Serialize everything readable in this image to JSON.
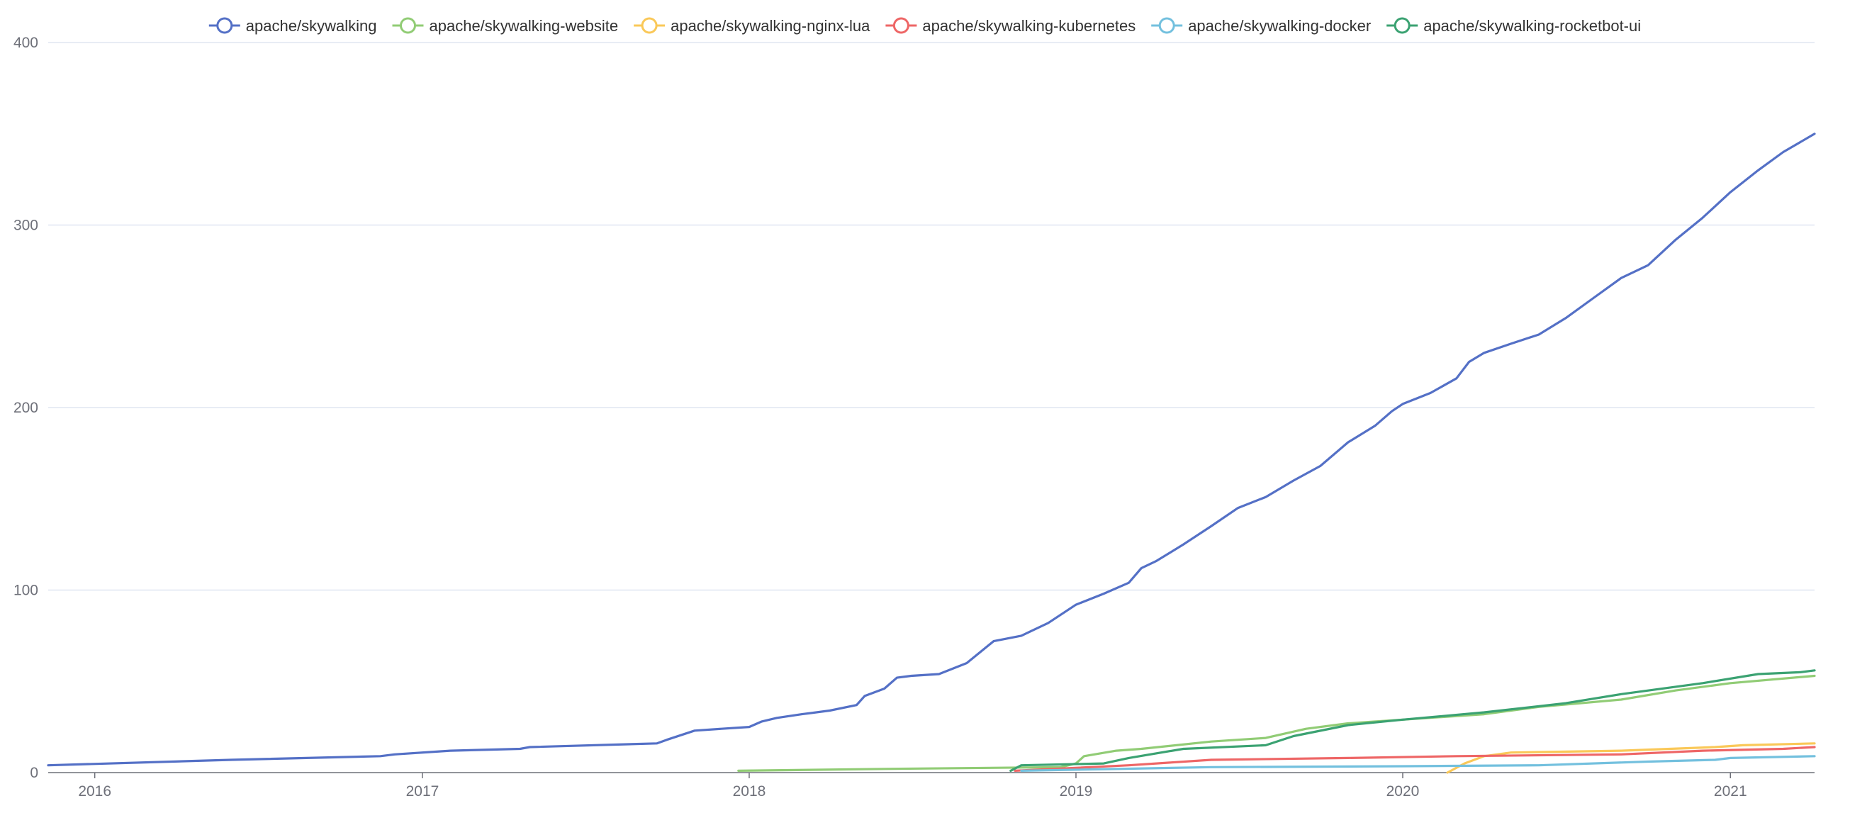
{
  "chart_data": {
    "type": "line",
    "title": "",
    "xlabel": "",
    "ylabel": "",
    "x_range": [
      "2015-11-10",
      "2021-04-05"
    ],
    "ylim": [
      0,
      400
    ],
    "y_ticks": [
      0,
      100,
      200,
      300,
      400
    ],
    "x_ticks": [
      "2016",
      "2017",
      "2018",
      "2019",
      "2020",
      "2021"
    ],
    "grid": "horizontal",
    "legend_position": "top-center",
    "series": [
      {
        "name": "apache/skywalking",
        "color": "#5470c6",
        "points": [
          [
            "2015-11-10",
            4
          ],
          [
            "2016-06-01",
            7
          ],
          [
            "2016-11-15",
            9
          ],
          [
            "2016-12-01",
            10
          ],
          [
            "2017-02-01",
            12
          ],
          [
            "2017-04-20",
            13
          ],
          [
            "2017-05-01",
            14
          ],
          [
            "2017-09-20",
            16
          ],
          [
            "2017-10-01",
            18
          ],
          [
            "2017-11-01",
            23
          ],
          [
            "2017-12-01",
            24
          ],
          [
            "2018-01-01",
            25
          ],
          [
            "2018-01-15",
            28
          ],
          [
            "2018-02-01",
            30
          ],
          [
            "2018-03-01",
            32
          ],
          [
            "2018-04-01",
            34
          ],
          [
            "2018-05-01",
            37
          ],
          [
            "2018-05-10",
            42
          ],
          [
            "2018-06-01",
            46
          ],
          [
            "2018-06-15",
            52
          ],
          [
            "2018-07-01",
            53
          ],
          [
            "2018-08-01",
            54
          ],
          [
            "2018-09-01",
            60
          ],
          [
            "2018-10-01",
            72
          ],
          [
            "2018-11-01",
            75
          ],
          [
            "2018-12-01",
            82
          ],
          [
            "2019-01-01",
            92
          ],
          [
            "2019-02-01",
            98
          ],
          [
            "2019-03-01",
            104
          ],
          [
            "2019-03-15",
            112
          ],
          [
            "2019-04-01",
            116
          ],
          [
            "2019-05-01",
            125
          ],
          [
            "2019-06-01",
            135
          ],
          [
            "2019-07-01",
            145
          ],
          [
            "2019-08-01",
            151
          ],
          [
            "2019-09-01",
            160
          ],
          [
            "2019-10-01",
            168
          ],
          [
            "2019-11-01",
            181
          ],
          [
            "2019-12-01",
            190
          ],
          [
            "2019-12-20",
            198
          ],
          [
            "2020-01-01",
            202
          ],
          [
            "2020-02-01",
            208
          ],
          [
            "2020-03-01",
            216
          ],
          [
            "2020-03-15",
            225
          ],
          [
            "2020-04-01",
            230
          ],
          [
            "2020-05-01",
            235
          ],
          [
            "2020-06-01",
            240
          ],
          [
            "2020-07-01",
            249
          ],
          [
            "2020-08-01",
            260
          ],
          [
            "2020-09-01",
            271
          ],
          [
            "2020-10-01",
            278
          ],
          [
            "2020-11-01",
            292
          ],
          [
            "2020-12-01",
            304
          ],
          [
            "2021-01-01",
            318
          ],
          [
            "2021-02-01",
            330
          ],
          [
            "2021-03-01",
            340
          ],
          [
            "2021-04-05",
            350
          ]
        ]
      },
      {
        "name": "apache/skywalking-website",
        "color": "#91cc75",
        "points": [
          [
            "2017-12-20",
            1
          ],
          [
            "2018-06-01",
            2
          ],
          [
            "2018-12-15",
            3
          ],
          [
            "2019-01-01",
            5
          ],
          [
            "2019-01-10",
            9
          ],
          [
            "2019-02-15",
            12
          ],
          [
            "2019-03-15",
            13
          ],
          [
            "2019-06-01",
            17
          ],
          [
            "2019-08-01",
            19
          ],
          [
            "2019-09-15",
            24
          ],
          [
            "2019-11-01",
            27
          ],
          [
            "2020-01-01",
            29
          ],
          [
            "2020-04-01",
            32
          ],
          [
            "2020-06-01",
            36
          ],
          [
            "2020-09-01",
            40
          ],
          [
            "2020-11-01",
            45
          ],
          [
            "2021-01-01",
            49
          ],
          [
            "2021-04-05",
            53
          ]
        ]
      },
      {
        "name": "apache/skywalking-nginx-lua",
        "color": "#fac858",
        "points": [
          [
            "2020-02-20",
            0
          ],
          [
            "2020-03-10",
            5
          ],
          [
            "2020-04-01",
            9
          ],
          [
            "2020-05-01",
            11
          ],
          [
            "2020-09-01",
            12
          ],
          [
            "2020-12-15",
            14
          ],
          [
            "2021-01-15",
            15
          ],
          [
            "2021-04-05",
            16
          ]
        ]
      },
      {
        "name": "apache/skywalking-kubernetes",
        "color": "#ee6666",
        "points": [
          [
            "2018-10-25",
            1
          ],
          [
            "2019-03-01",
            4
          ],
          [
            "2019-06-01",
            7
          ],
          [
            "2019-11-01",
            8
          ],
          [
            "2020-03-01",
            9
          ],
          [
            "2020-09-01",
            10
          ],
          [
            "2020-12-01",
            12
          ],
          [
            "2021-03-01",
            13
          ],
          [
            "2021-04-05",
            14
          ]
        ]
      },
      {
        "name": "apache/skywalking-docker",
        "color": "#73c0de",
        "points": [
          [
            "2018-11-01",
            1
          ],
          [
            "2019-06-01",
            3
          ],
          [
            "2020-01-01",
            3.5
          ],
          [
            "2020-06-01",
            4
          ],
          [
            "2020-10-01",
            6
          ],
          [
            "2020-12-15",
            7
          ],
          [
            "2021-01-01",
            8
          ],
          [
            "2021-04-05",
            9
          ]
        ]
      },
      {
        "name": "apache/skywalking-rocketbot-ui",
        "color": "#3ba272",
        "points": [
          [
            "2018-10-20",
            1
          ],
          [
            "2018-11-01",
            4
          ],
          [
            "2019-02-01",
            5
          ],
          [
            "2019-03-01",
            8
          ],
          [
            "2019-05-01",
            13
          ],
          [
            "2019-08-01",
            15
          ],
          [
            "2019-09-01",
            20
          ],
          [
            "2019-11-01",
            26
          ],
          [
            "2020-01-01",
            29
          ],
          [
            "2020-04-01",
            33
          ],
          [
            "2020-07-01",
            38
          ],
          [
            "2020-09-01",
            43
          ],
          [
            "2020-12-01",
            49
          ],
          [
            "2021-02-01",
            54
          ],
          [
            "2021-03-20",
            55
          ],
          [
            "2021-04-05",
            56
          ]
        ]
      }
    ]
  }
}
